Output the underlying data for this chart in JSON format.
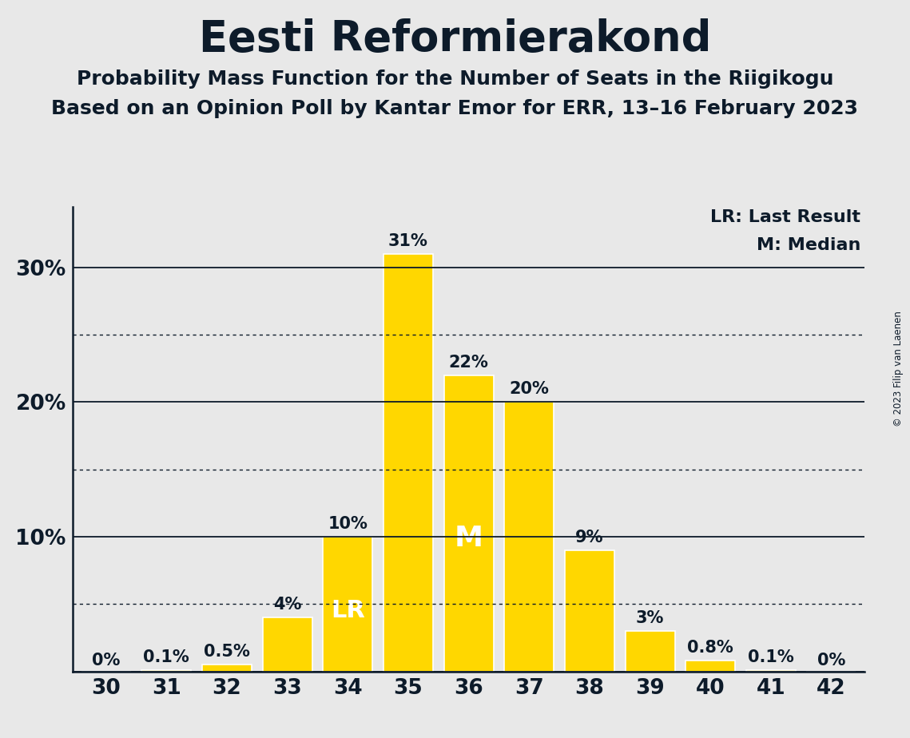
{
  "title": "Eesti Reformierakond",
  "subtitle1": "Probability Mass Function for the Number of Seats in the Riigikogu",
  "subtitle2": "Based on an Opinion Poll by Kantar Emor for ERR, 13–16 February 2023",
  "copyright": "© 2023 Filip van Laenen",
  "legend_lr": "LR: Last Result",
  "legend_m": "M: Median",
  "seats": [
    30,
    31,
    32,
    33,
    34,
    35,
    36,
    37,
    38,
    39,
    40,
    41,
    42
  ],
  "values": [
    0.0,
    0.1,
    0.5,
    4.0,
    10.0,
    31.0,
    22.0,
    20.0,
    9.0,
    3.0,
    0.8,
    0.1,
    0.0
  ],
  "labels": [
    "0%",
    "0.1%",
    "0.5%",
    "4%",
    "10%",
    "31%",
    "22%",
    "20%",
    "9%",
    "3%",
    "0.8%",
    "0.1%",
    "0%"
  ],
  "bar_color": "#FFD700",
  "background_color": "#E8E8E8",
  "text_color": "#0D1B2A",
  "lr_seat": 34,
  "median_seat": 36,
  "solid_gridlines": [
    0,
    10,
    20,
    30
  ],
  "dotted_gridlines": [
    5,
    15,
    25
  ],
  "ylim": [
    0,
    34.5
  ],
  "title_fontsize": 38,
  "subtitle_fontsize": 18,
  "label_fontsize": 15,
  "tick_fontsize": 19,
  "inside_label_fontsize": 20
}
